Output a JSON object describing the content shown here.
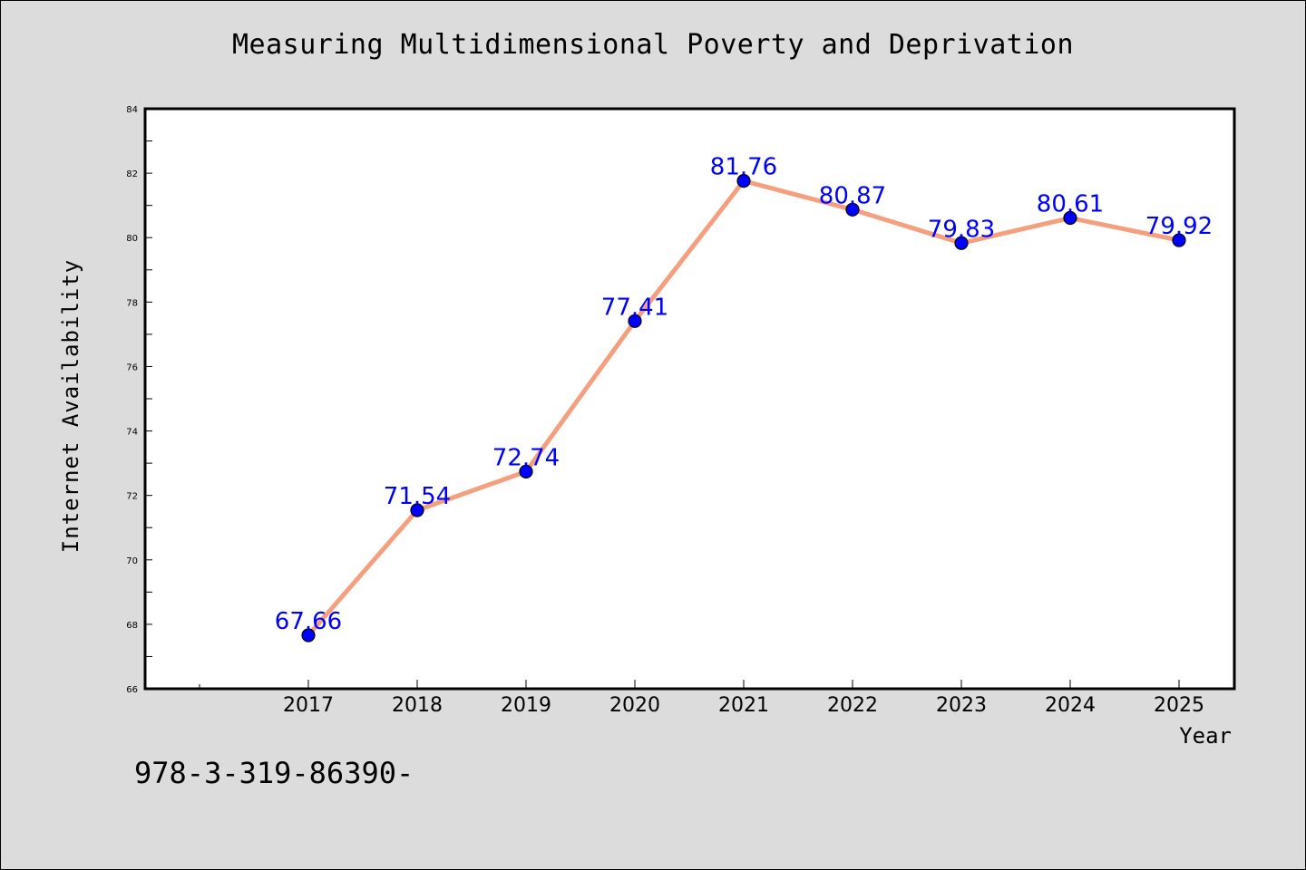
{
  "chart_data": {
    "type": "line",
    "title": "Measuring Multidimensional Poverty and Deprivation",
    "xlabel": "Year",
    "ylabel": "Internet Availability",
    "x": [
      "2017",
      "2018",
      "2019",
      "2020",
      "2021",
      "2022",
      "2023",
      "2024",
      "2025"
    ],
    "series": [
      {
        "values": [
          67.66,
          71.54,
          72.74,
          77.41,
          81.76,
          80.87,
          79.83,
          80.61,
          79.92
        ],
        "data_labels": [
          "67.66",
          "71.54",
          "72.74",
          "77.41",
          "81.76",
          "80.87",
          "79.83",
          "80.61",
          "79.92"
        ]
      }
    ],
    "ylim": [
      66,
      84
    ],
    "yticks": [
      66,
      68,
      70,
      72,
      74,
      76,
      78,
      80,
      82,
      84
    ],
    "ytick_labels": [
      "66",
      "68",
      "70",
      "72",
      "74",
      "76",
      "78",
      "80",
      "82",
      "84"
    ],
    "grid": false,
    "legend": "none",
    "colors": {
      "line": "#f4a07f",
      "marker": "#0000ff",
      "data_label": "#0000ff",
      "plot_background": "#ffffff",
      "page_background": "#dcdcdc"
    }
  },
  "footer": {
    "note": "978-3-319-86390-"
  }
}
